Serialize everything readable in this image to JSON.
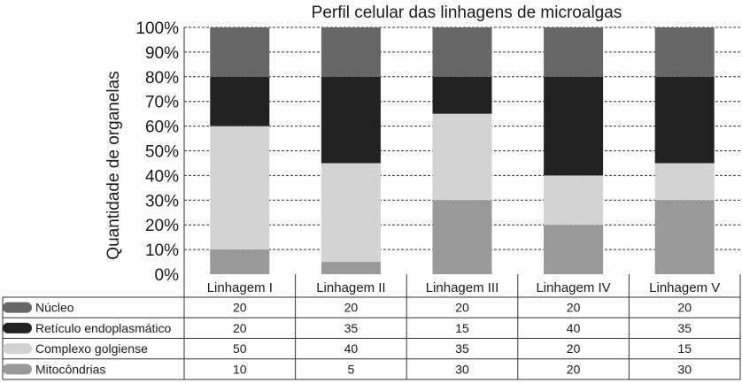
{
  "chart_data": {
    "type": "bar",
    "stacked": true,
    "title": "Perfil celular das linhagens de microalgas",
    "ylabel": "Quantidade de organelas",
    "xlabel": "",
    "ylim": [
      0,
      100
    ],
    "yticks": [
      "0%",
      "10%",
      "20%",
      "30%",
      "40%",
      "50%",
      "60%",
      "70%",
      "80%",
      "90%",
      "100%"
    ],
    "grid": "horizontal dashed",
    "legend": "data table below chart",
    "categories": [
      "Linhagem I",
      "Linhagem II",
      "Linhagem III",
      "Linhagem IV",
      "Linhagem V"
    ],
    "series": [
      {
        "name": "Mitocôndrias",
        "values": [
          10,
          5,
          30,
          20,
          30
        ],
        "color": "#999999"
      },
      {
        "name": "Complexo golgiense",
        "values": [
          50,
          40,
          35,
          20,
          15
        ],
        "color": "#d3d3d3"
      },
      {
        "name": "Retículo endoplasmático",
        "values": [
          20,
          35,
          15,
          40,
          35
        ],
        "color": "#222222"
      },
      {
        "name": "Núcleo",
        "values": [
          20,
          20,
          20,
          20,
          20
        ],
        "color": "#666666"
      }
    ],
    "table_row_order": [
      "Núcleo",
      "Retículo endoplasmático",
      "Complexo golgiense",
      "Mitocôndrias"
    ]
  }
}
